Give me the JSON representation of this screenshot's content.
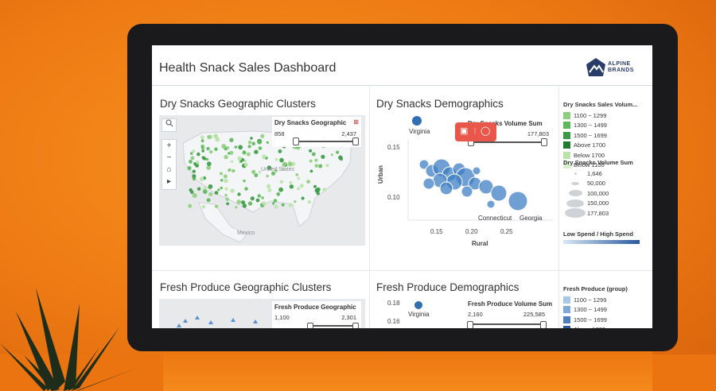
{
  "dashboard": {
    "title": "Health Snack Sales Dashboard",
    "logo_line1": "ALPINE",
    "logo_line2": "BRANDS"
  },
  "colors": {
    "accent_orange": "#f07d17",
    "map_green": "#5cb85c",
    "bubble_blue": "#2f6fb2"
  },
  "dry_geo": {
    "title": "Dry Snacks Geographic Clusters",
    "filter_label": "Dry Snacks Geographic",
    "filter_min": "858",
    "filter_max": "2,437",
    "map_label_mexico": "Mexico",
    "map_label_us": "United States",
    "controls": [
      "search-icon",
      "zoom-in",
      "zoom-out",
      "home-icon",
      "play-icon"
    ]
  },
  "dry_demo": {
    "title": "Dry Snacks Demographics",
    "filter_label": "Dry Snacks Volume Sum",
    "filter_min": "",
    "filter_max": "177,803",
    "y_label": "Urban",
    "x_label": "Rural",
    "y_ticks": [
      "0.15",
      "0.10"
    ],
    "x_ticks": [
      "0.15",
      "0.20",
      "0.25"
    ],
    "labels": {
      "virginia": "Virginia",
      "connecticut": "Connecticut",
      "georgia": "Georgia"
    }
  },
  "dry_legend_sales": {
    "title": "Dry Snacks Sales Volum...",
    "items": [
      "1100 ~ 1299",
      "1300 ~ 1499",
      "1500 ~ 1699",
      "Above 1700",
      "Below 1700",
      "Below 1100"
    ],
    "colors": [
      "#8fce7f",
      "#5cb85c",
      "#3a9a45",
      "#217a32",
      "#b9e3a9",
      "#d9f0cf"
    ]
  },
  "dry_legend_volume": {
    "title": "Dry Snacks  Volume Sum",
    "items": [
      "1,646",
      "50,000",
      "100,000",
      "150,000",
      "177,803"
    ]
  },
  "dry_legend_spend": {
    "title": "Low Spend / High Spend"
  },
  "fresh_geo": {
    "title": "Fresh Produce Geographic Clusters",
    "filter_label": "Fresh Produce Geographic",
    "filter_min": "1,100",
    "filter_max": "2,301"
  },
  "fresh_demo": {
    "title": "Fresh Produce Demographics",
    "filter_label": "Fresh Produce Volume Sum",
    "filter_min": "2,160",
    "filter_max": "225,585",
    "y_ticks": [
      "0.18",
      "0.16"
    ],
    "label_virginia": "Virginia"
  },
  "fresh_legend": {
    "title": "Fresh Produce (group)",
    "items": [
      "1100 ~ 1299",
      "1300 ~ 1499",
      "1500 ~ 1699",
      "Above 1700"
    ],
    "colors": [
      "#a9c7e8",
      "#7fa8d6",
      "#4f7fbf",
      "#2a5a9c"
    ]
  },
  "overlay_toolbar": {
    "left_icon": "ocr-icon",
    "right_icon": "search-icon"
  }
}
